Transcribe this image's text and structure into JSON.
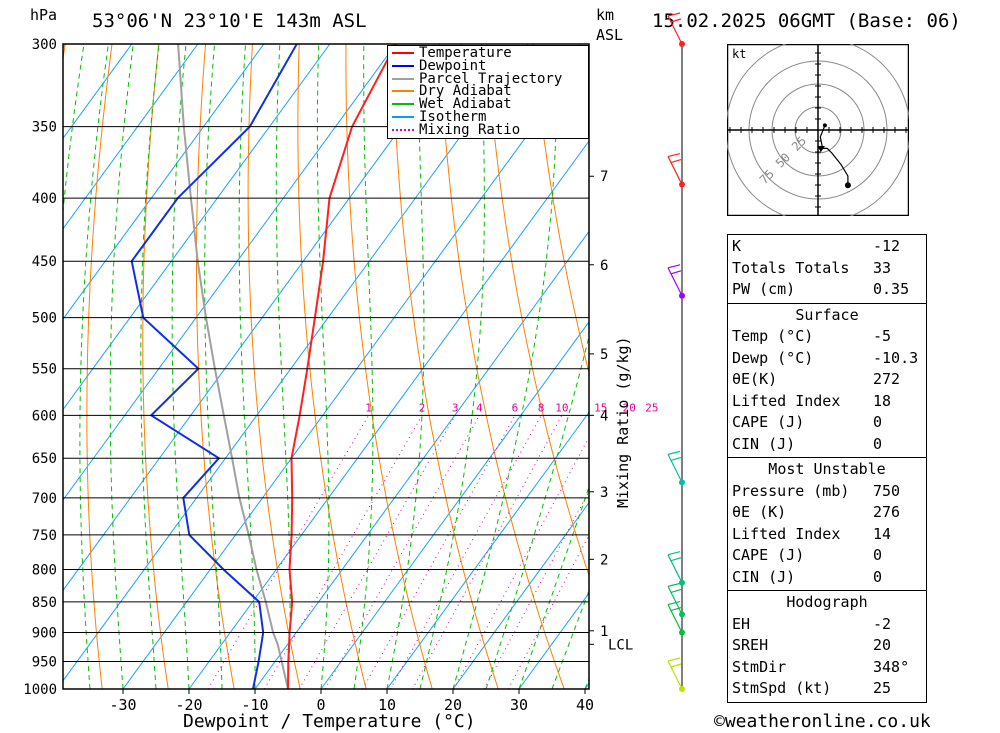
{
  "header": {
    "hpa_unit": "hPa",
    "location": "53°06'N 23°10'E 143m ASL",
    "km_unit": "km",
    "asl_unit": "ASL",
    "datetime": "15.02.2025 06GMT (Base: 06)"
  },
  "footer": {
    "x_axis_title": "Dewpoint / Temperature (°C)",
    "y_axis_right_title": "Mixing Ratio (g/kg)",
    "copyright": "©weatheronline.co.uk"
  },
  "legend": [
    {
      "label": "Temperature",
      "color": "#ff0000"
    },
    {
      "label": "Dewpoint",
      "color": "#0000ff"
    },
    {
      "label": "Parcel Trajectory",
      "color": "#a0a0a0"
    },
    {
      "label": "Dry Adiabat",
      "color": "#ff8000"
    },
    {
      "label": "Wet Adiabat",
      "color": "#00c000"
    },
    {
      "label": "Isotherm",
      "color": "#00a0ff"
    },
    {
      "label": "Mixing Ratio",
      "color": "#e000a0"
    }
  ],
  "chart_data": {
    "type": "skew-t",
    "pressure_levels": [
      300,
      350,
      400,
      450,
      500,
      550,
      600,
      650,
      700,
      750,
      800,
      850,
      900,
      950,
      1000
    ],
    "temperature_ticks": [
      -30,
      -20,
      -10,
      0,
      10,
      20,
      30,
      40
    ],
    "km_ticks": [
      {
        "label": "7",
        "p": 384
      },
      {
        "label": "6",
        "p": 453
      },
      {
        "label": "5",
        "p": 535
      },
      {
        "label": "4",
        "p": 600
      },
      {
        "label": "3",
        "p": 692
      },
      {
        "label": "2",
        "p": 785
      },
      {
        "label": "1",
        "p": 897
      },
      {
        "label": "LCL",
        "p": 920
      }
    ],
    "mixing_ratio_labels": [
      "1",
      "2",
      "3",
      "4",
      "6",
      "8",
      "10",
      "15",
      "20",
      "25"
    ],
    "mixing_ratio_values": [
      1,
      2,
      3,
      4,
      6,
      8,
      10,
      15,
      20,
      25
    ],
    "temperature_profile": [
      {
        "p": 1000,
        "t": -5
      },
      {
        "p": 950,
        "t": -8
      },
      {
        "p": 900,
        "t": -11
      },
      {
        "p": 850,
        "t": -14
      },
      {
        "p": 800,
        "t": -18
      },
      {
        "p": 750,
        "t": -21.5
      },
      {
        "p": 700,
        "t": -25.5
      },
      {
        "p": 650,
        "t": -30
      },
      {
        "p": 600,
        "t": -33.5
      },
      {
        "p": 550,
        "t": -37.5
      },
      {
        "p": 500,
        "t": -42
      },
      {
        "p": 450,
        "t": -47
      },
      {
        "p": 400,
        "t": -53
      },
      {
        "p": 350,
        "t": -57.5
      },
      {
        "p": 300,
        "t": -60
      }
    ],
    "dewpoint_profile": [
      {
        "p": 1000,
        "t": -10.3
      },
      {
        "p": 950,
        "t": -12.5
      },
      {
        "p": 900,
        "t": -15
      },
      {
        "p": 850,
        "t": -19
      },
      {
        "p": 800,
        "t": -28
      },
      {
        "p": 750,
        "t": -37
      },
      {
        "p": 700,
        "t": -42
      },
      {
        "p": 650,
        "t": -41
      },
      {
        "p": 600,
        "t": -56
      },
      {
        "p": 550,
        "t": -54
      },
      {
        "p": 500,
        "t": -68
      },
      {
        "p": 450,
        "t": -76
      },
      {
        "p": 400,
        "t": -76
      },
      {
        "p": 350,
        "t": -73
      },
      {
        "p": 300,
        "t": -75
      }
    ],
    "parcel_profile": [
      {
        "p": 1000,
        "t": -5
      },
      {
        "p": 950,
        "t": -9
      },
      {
        "p": 920,
        "t": -11.5
      },
      {
        "p": 900,
        "t": -13.5
      },
      {
        "p": 850,
        "t": -18
      },
      {
        "p": 800,
        "t": -23
      },
      {
        "p": 750,
        "t": -28
      },
      {
        "p": 700,
        "t": -33.5
      },
      {
        "p": 650,
        "t": -39
      },
      {
        "p": 600,
        "t": -45
      },
      {
        "p": 550,
        "t": -51.5
      },
      {
        "p": 500,
        "t": -58.5
      },
      {
        "p": 450,
        "t": -66
      },
      {
        "p": 400,
        "t": -74
      },
      {
        "p": 350,
        "t": -83
      },
      {
        "p": 300,
        "t": -93
      }
    ],
    "wind_barb_levels": [
      {
        "p": 300,
        "color": "#ff2020"
      },
      {
        "p": 390,
        "color": "#ff2020"
      },
      {
        "p": 480,
        "color": "#a000ff"
      },
      {
        "p": 680,
        "color": "#00c0a0"
      },
      {
        "p": 820,
        "color": "#00c080"
      },
      {
        "p": 870,
        "color": "#00c060"
      },
      {
        "p": 900,
        "color": "#00c040"
      },
      {
        "p": 1000,
        "color": "#c0e000"
      }
    ],
    "hodograph": {
      "unit": "kt",
      "ring_labels": [
        "25",
        "50",
        "75"
      ],
      "path_u_v": [
        [
          3,
          2
        ],
        [
          1,
          -3
        ],
        [
          2,
          -8
        ],
        [
          4,
          -8
        ],
        [
          6,
          -10
        ],
        [
          10,
          -15
        ],
        [
          13,
          -20
        ],
        [
          13,
          -24
        ]
      ]
    }
  },
  "indices": {
    "basic": [
      {
        "label": "K",
        "value": "-12"
      },
      {
        "label": "Totals Totals",
        "value": "33"
      },
      {
        "label": "PW (cm)",
        "value": "0.35"
      }
    ],
    "surface_title": "Surface",
    "surface": [
      {
        "label": "Temp (°C)",
        "value": "-5"
      },
      {
        "label": "Dewp (°C)",
        "value": "-10.3"
      },
      {
        "label": "θE(K)",
        "value": "272"
      },
      {
        "label": "Lifted Index",
        "value": "18"
      },
      {
        "label": "CAPE (J)",
        "value": "0"
      },
      {
        "label": "CIN (J)",
        "value": "0"
      }
    ],
    "unstable_title": "Most Unstable",
    "unstable": [
      {
        "label": "Pressure (mb)",
        "value": "750"
      },
      {
        "label": "θE (K)",
        "value": "276"
      },
      {
        "label": "Lifted Index",
        "value": "14"
      },
      {
        "label": "CAPE (J)",
        "value": "0"
      },
      {
        "label": "CIN (J)",
        "value": "0"
      }
    ],
    "hodograph_title": "Hodograph",
    "hodograph": [
      {
        "label": "EH",
        "value": "-2"
      },
      {
        "label": "SREH",
        "value": "20"
      },
      {
        "label": "StmDir",
        "value": "348°"
      },
      {
        "label": "StmSpd (kt)",
        "value": "25"
      }
    ]
  }
}
